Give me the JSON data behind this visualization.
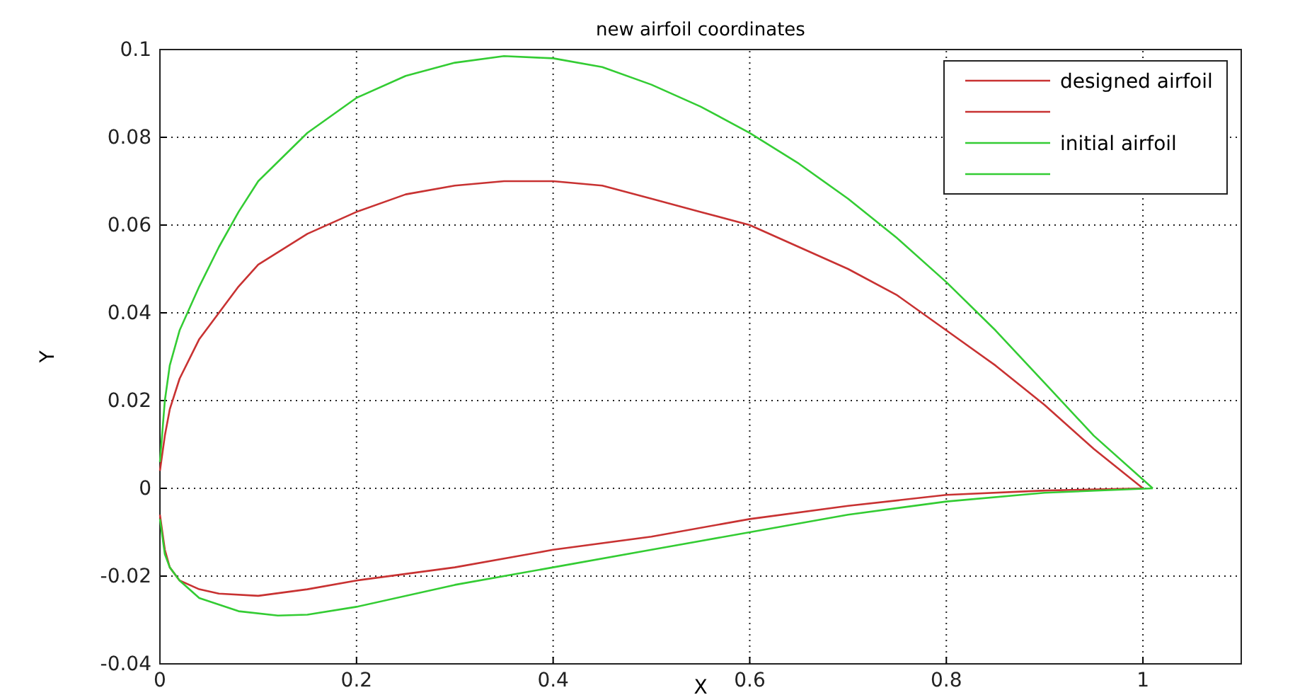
{
  "chart_data": {
    "type": "line",
    "title": "new airfoil coordinates",
    "xlabel": "X",
    "ylabel": "Y",
    "xlim": [
      0,
      1.1
    ],
    "xticks": [
      0,
      0.2,
      0.4,
      0.6,
      0.8,
      1
    ],
    "ylim": [
      -0.04,
      0.1
    ],
    "yticks": [
      -0.04,
      -0.02,
      0,
      0.02,
      0.04,
      0.06,
      0.08,
      0.1
    ],
    "grid": true,
    "legend": "top right",
    "line_style": "solid",
    "marker": "none",
    "series": [
      {
        "name": "designed airfoil",
        "color": "#c83232",
        "x": [
          0,
          0.005,
          0.01,
          0.02,
          0.04,
          0.06,
          0.08,
          0.1,
          0.15,
          0.2,
          0.25,
          0.3,
          0.35,
          0.4,
          0.45,
          0.5,
          0.55,
          0.6,
          0.65,
          0.7,
          0.75,
          0.8,
          0.85,
          0.9,
          0.95,
          1.0
        ],
        "values": [
          0.004,
          0.012,
          0.018,
          0.025,
          0.034,
          0.04,
          0.046,
          0.051,
          0.058,
          0.063,
          0.067,
          0.069,
          0.07,
          0.07,
          0.069,
          0.066,
          0.063,
          0.06,
          0.055,
          0.05,
          0.044,
          0.036,
          0.028,
          0.019,
          0.009,
          0
        ]
      },
      {
        "color": "#c83232",
        "x": [
          0,
          0.005,
          0.01,
          0.02,
          0.04,
          0.06,
          0.1,
          0.15,
          0.2,
          0.3,
          0.4,
          0.5,
          0.6,
          0.7,
          0.8,
          0.9,
          1.0
        ],
        "values": [
          -0.006,
          -0.014,
          -0.018,
          -0.021,
          -0.023,
          -0.024,
          -0.0245,
          -0.023,
          -0.021,
          -0.018,
          -0.014,
          -0.011,
          -0.007,
          -0.004,
          -0.0015,
          -0.0005,
          0
        ]
      },
      {
        "name": "initial airfoil",
        "color": "#33cc33",
        "x": [
          0,
          0.005,
          0.01,
          0.02,
          0.04,
          0.06,
          0.08,
          0.1,
          0.15,
          0.2,
          0.25,
          0.3,
          0.35,
          0.4,
          0.45,
          0.5,
          0.55,
          0.6,
          0.65,
          0.7,
          0.75,
          0.8,
          0.85,
          0.9,
          0.95,
          1.01
        ],
        "values": [
          0.006,
          0.02,
          0.028,
          0.036,
          0.046,
          0.055,
          0.063,
          0.07,
          0.081,
          0.089,
          0.094,
          0.097,
          0.0985,
          0.098,
          0.096,
          0.092,
          0.087,
          0.081,
          0.074,
          0.066,
          0.057,
          0.047,
          0.036,
          0.024,
          0.012,
          0
        ]
      },
      {
        "color": "#33cc33",
        "x": [
          0,
          0.005,
          0.01,
          0.02,
          0.04,
          0.08,
          0.12,
          0.15,
          0.2,
          0.3,
          0.4,
          0.5,
          0.6,
          0.7,
          0.8,
          0.9,
          1.01
        ],
        "values": [
          -0.007,
          -0.015,
          -0.018,
          -0.021,
          -0.025,
          -0.028,
          -0.029,
          -0.0288,
          -0.027,
          -0.022,
          -0.018,
          -0.014,
          -0.01,
          -0.006,
          -0.003,
          -0.001,
          0
        ]
      }
    ]
  }
}
